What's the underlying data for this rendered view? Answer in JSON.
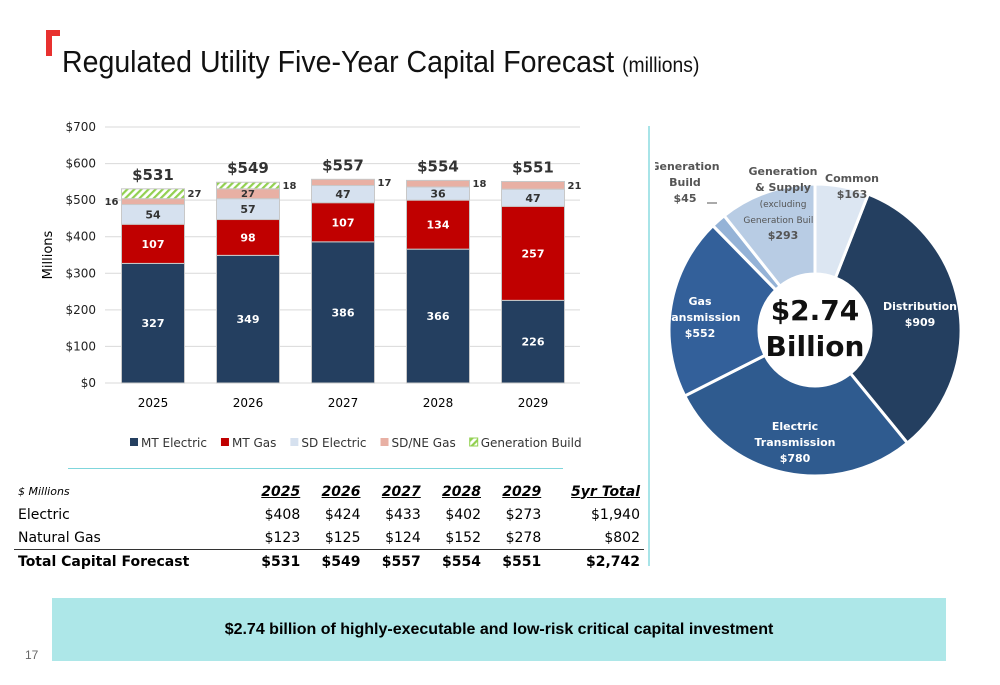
{
  "header": {
    "title": "Regulated Utility Five-Year Capital Forecast",
    "unit": "(millions)"
  },
  "chart_data": [
    {
      "type": "bar",
      "stacked": true,
      "categories": [
        "2025",
        "2026",
        "2027",
        "2028",
        "2029"
      ],
      "ylabel": "Millions",
      "ylim": [
        0,
        700
      ],
      "yticks": [
        "$0",
        "$100",
        "$200",
        "$300",
        "$400",
        "$500",
        "$600",
        "$700"
      ],
      "grid": true,
      "legend": "bottom",
      "totals": [
        "$531",
        "$549",
        "$557",
        "$554",
        "$551"
      ],
      "series": [
        {
          "name": "MT Electric",
          "color": "#243f60",
          "values": [
            327,
            349,
            386,
            366,
            226
          ]
        },
        {
          "name": "MT Gas",
          "color": "#c00000",
          "values": [
            107,
            98,
            107,
            134,
            257
          ]
        },
        {
          "name": "SD Electric",
          "color": "#d6e1ef",
          "values": [
            54,
            57,
            47,
            36,
            47
          ]
        },
        {
          "name": "SD/NE Gas",
          "color": "#e8b0a4",
          "values": [
            16,
            27,
            17,
            18,
            21
          ]
        },
        {
          "name": "Generation Build",
          "color": "#92d050",
          "pattern": "hatched",
          "values": [
            27,
            18,
            0,
            0,
            0
          ]
        }
      ]
    },
    {
      "type": "pie",
      "donut": true,
      "center_label": [
        "$2.74",
        "Billion"
      ],
      "slices": [
        {
          "label": [
            "Distribution",
            "$909"
          ],
          "value": 909,
          "color": "#243f60"
        },
        {
          "label": [
            "Electric",
            "Transmission",
            "$780"
          ],
          "value": 780,
          "color": "#2f5b8f"
        },
        {
          "label": [
            "Gas",
            "Transmission",
            "$552"
          ],
          "value": 552,
          "color": "#33609a"
        },
        {
          "label": [
            "Generation",
            "Build",
            "$45"
          ],
          "value": 45,
          "color": "#95b3d7"
        },
        {
          "label": [
            "Generation",
            "& Supply",
            "(excluding",
            "Generation Build)",
            "$293"
          ],
          "value": 293,
          "color": "#b8cce4"
        },
        {
          "label": [
            "Common",
            "$163"
          ],
          "value": 163,
          "color": "#dce6f2"
        }
      ]
    }
  ],
  "table": {
    "headers": [
      "$ Millions",
      "2025",
      "2026",
      "2027",
      "2028",
      "2029",
      "5yr Total"
    ],
    "rows": [
      [
        "Electric",
        "$408",
        "$424",
        "$433",
        "$402",
        "$273",
        "$1,940"
      ],
      [
        "Natural Gas",
        "$123",
        "$125",
        "$124",
        "$152",
        "$278",
        "$802"
      ],
      [
        "Total Capital Forecast",
        "$531",
        "$549",
        "$557",
        "$554",
        "$551",
        "$2,742"
      ]
    ]
  },
  "banner": "$2.74 billion of highly-executable and low-risk critical capital investment",
  "page_number": "17"
}
